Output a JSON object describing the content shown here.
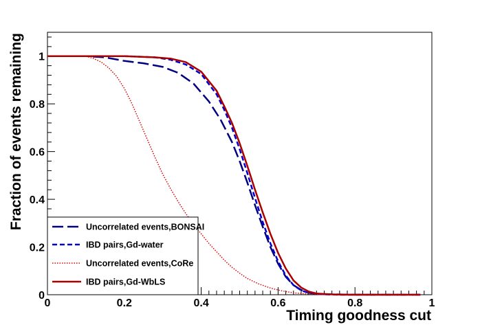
{
  "chart_data": {
    "type": "line",
    "title": "",
    "xlabel": "Timing goodness cut",
    "ylabel": "Fraction of events remaining",
    "xlim": [
      0,
      1.0
    ],
    "ylim": [
      0,
      1.1
    ],
    "x_ticks": [
      0,
      0.2,
      0.4,
      0.6,
      0.8,
      1
    ],
    "x_tick_labels": [
      "0",
      "0.2",
      "0.4",
      "0.6",
      "0.8",
      "1"
    ],
    "y_ticks": [
      0,
      0.2,
      0.4,
      0.6,
      0.8,
      1
    ],
    "y_tick_labels": [
      "0",
      "0.2",
      "0.4",
      "0.6",
      "0.8",
      "1"
    ],
    "legend_position": "bottom-left",
    "series": [
      {
        "name": "Uncorrelated events,BONSAI",
        "color": "#000080",
        "style": "long-dash",
        "x": [
          0.0,
          0.1,
          0.15,
          0.2,
          0.25,
          0.3,
          0.34,
          0.38,
          0.42,
          0.45,
          0.48,
          0.5,
          0.52,
          0.54,
          0.56,
          0.58,
          0.6,
          0.62,
          0.64,
          0.66,
          0.68,
          0.7,
          0.73,
          0.76,
          0.8,
          0.9,
          0.97
        ],
        "y": [
          1.0,
          1.0,
          0.995,
          0.98,
          0.97,
          0.955,
          0.93,
          0.885,
          0.81,
          0.735,
          0.64,
          0.56,
          0.47,
          0.375,
          0.285,
          0.2,
          0.13,
          0.075,
          0.04,
          0.02,
          0.009,
          0.004,
          0.002,
          0.001,
          0.0,
          0.0,
          0.0
        ]
      },
      {
        "name": "IBD pairs,Gd-water",
        "color": "#0000cc",
        "style": "dashed",
        "x": [
          0.0,
          0.2,
          0.28,
          0.32,
          0.36,
          0.4,
          0.44,
          0.46,
          0.48,
          0.5,
          0.52,
          0.54,
          0.56,
          0.58,
          0.6,
          0.62,
          0.64,
          0.66,
          0.68,
          0.7,
          0.73,
          0.76,
          0.8,
          0.9,
          0.97
        ],
        "y": [
          1.0,
          1.0,
          0.995,
          0.985,
          0.965,
          0.925,
          0.84,
          0.775,
          0.7,
          0.61,
          0.51,
          0.405,
          0.305,
          0.215,
          0.14,
          0.08,
          0.04,
          0.018,
          0.007,
          0.003,
          0.001,
          0.0,
          0.0,
          0.0,
          0.0
        ]
      },
      {
        "name": "Uncorrelated events,CoRe",
        "color": "#dd0000",
        "style": "dotted",
        "x": [
          0.0,
          0.1,
          0.12,
          0.14,
          0.16,
          0.18,
          0.2,
          0.22,
          0.24,
          0.26,
          0.28,
          0.3,
          0.32,
          0.34,
          0.36,
          0.38,
          0.4,
          0.42,
          0.44,
          0.46,
          0.48,
          0.5,
          0.52,
          0.55,
          0.58,
          0.61,
          0.64,
          0.67,
          0.7,
          0.75,
          0.8
        ],
        "y": [
          1.0,
          1.0,
          0.99,
          0.975,
          0.95,
          0.915,
          0.865,
          0.8,
          0.725,
          0.65,
          0.575,
          0.505,
          0.445,
          0.39,
          0.34,
          0.295,
          0.255,
          0.215,
          0.18,
          0.145,
          0.115,
          0.09,
          0.068,
          0.045,
          0.028,
          0.016,
          0.008,
          0.004,
          0.002,
          0.0005,
          0.0
        ]
      },
      {
        "name": "IBD pairs,Gd-WbLS",
        "color": "#aa0000",
        "style": "solid",
        "x": [
          0.0,
          0.2,
          0.28,
          0.32,
          0.36,
          0.4,
          0.44,
          0.46,
          0.48,
          0.5,
          0.52,
          0.54,
          0.56,
          0.58,
          0.6,
          0.62,
          0.64,
          0.66,
          0.68,
          0.7,
          0.73,
          0.76,
          0.8,
          0.9,
          0.97
        ],
        "y": [
          1.0,
          1.0,
          0.995,
          0.99,
          0.975,
          0.935,
          0.855,
          0.79,
          0.72,
          0.635,
          0.54,
          0.44,
          0.345,
          0.255,
          0.175,
          0.11,
          0.06,
          0.03,
          0.013,
          0.005,
          0.002,
          0.0005,
          0.0,
          0.0,
          0.0
        ]
      }
    ]
  }
}
